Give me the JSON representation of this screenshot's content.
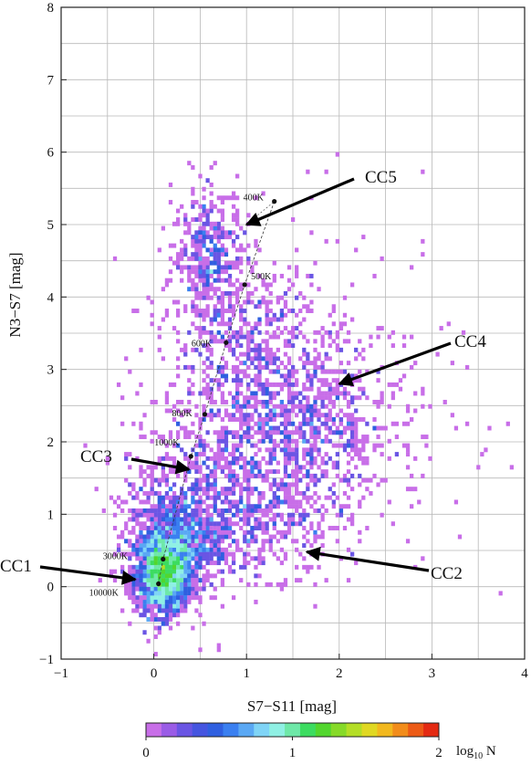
{
  "chart_data": {
    "type": "heatmap",
    "xlabel": "S7−S11 [mag]",
    "ylabel": "N3−S7 [mag]",
    "xlim": [
      -1,
      4
    ],
    "ylim": [
      -1,
      8
    ],
    "x_ticks": [
      "−1",
      "0",
      "1",
      "2",
      "3",
      "4"
    ],
    "y_ticks": [
      "−1",
      "0",
      "1",
      "2",
      "3",
      "4",
      "5",
      "6",
      "7",
      "8"
    ],
    "grid": true,
    "colorbar": {
      "label": "log10 N",
      "label_base": "log",
      "label_sub": "10",
      "label_tail": " N",
      "range": [
        0,
        2
      ],
      "ticks": [
        "0",
        "1",
        "2"
      ],
      "colors": [
        "#c86ee8",
        "#9a5ce6",
        "#6a55e4",
        "#4555e0",
        "#2f5fe0",
        "#3a7ff0",
        "#5aa8f4",
        "#7fd4f6",
        "#8ff0e4",
        "#6ee8a8",
        "#3cdc60",
        "#52d62e",
        "#86da28",
        "#b4de26",
        "#e0d822",
        "#f2b81e",
        "#f28c1a",
        "#ec5a16",
        "#e42a12"
      ]
    },
    "density_clusters": [
      {
        "cx": 0.1,
        "cy": 0.15,
        "sx": 0.15,
        "sy": 0.27,
        "n": 1400
      },
      {
        "cx": 0.2,
        "cy": 0.6,
        "sx": 0.24,
        "sy": 0.35,
        "n": 800
      },
      {
        "cx": 0.45,
        "cy": 1.3,
        "sx": 0.4,
        "sy": 0.7,
        "n": 500
      },
      {
        "cx": 1.5,
        "cy": 2.2,
        "sx": 0.55,
        "sy": 0.6,
        "n": 1000
      },
      {
        "cx": 1.0,
        "cy": 0.95,
        "sx": 0.55,
        "sy": 0.4,
        "n": 450
      },
      {
        "cx": 0.6,
        "cy": 4.6,
        "sx": 0.2,
        "sy": 0.45,
        "n": 400
      },
      {
        "cx": 1.0,
        "cy": 3.4,
        "sx": 0.4,
        "sy": 0.5,
        "n": 350
      },
      {
        "cx": 1.6,
        "cy": 2.6,
        "sx": 0.9,
        "sy": 1.3,
        "n": 300
      }
    ],
    "temperature_track": [
      {
        "label": "400K",
        "x": 1.3,
        "y": 5.32
      },
      {
        "label": "500K",
        "x": 0.98,
        "y": 4.17
      },
      {
        "label": "600K",
        "x": 0.78,
        "y": 3.37
      },
      {
        "label": "800K",
        "x": 0.55,
        "y": 2.38
      },
      {
        "label": "1000K",
        "x": 0.4,
        "y": 1.8
      },
      {
        "label": "3000K",
        "x": 0.1,
        "y": 0.38
      },
      {
        "label": "10000K",
        "x": 0.05,
        "y": 0.04
      }
    ],
    "annotations": [
      {
        "label": "CC5",
        "text_x": 2.3,
        "text_y": 5.55,
        "arrow_x": 1.0,
        "arrow_y": 5.0
      },
      {
        "label": "CC4",
        "text_x": 3.25,
        "text_y": 3.35,
        "arrow_x": 2.0,
        "arrow_y": 2.8
      },
      {
        "label": "CC3",
        "text_x": -0.8,
        "text_y": 1.7,
        "arrow_x": 0.38,
        "arrow_y": 1.62
      },
      {
        "label": "CC2",
        "text_x": 3.0,
        "text_y": 0.25,
        "arrow_x": 1.65,
        "arrow_y": 0.48
      },
      {
        "label": "CC1",
        "text_x": -1.65,
        "text_y": 0.25,
        "arrow_x": -0.2,
        "arrow_y": 0.1
      }
    ]
  }
}
